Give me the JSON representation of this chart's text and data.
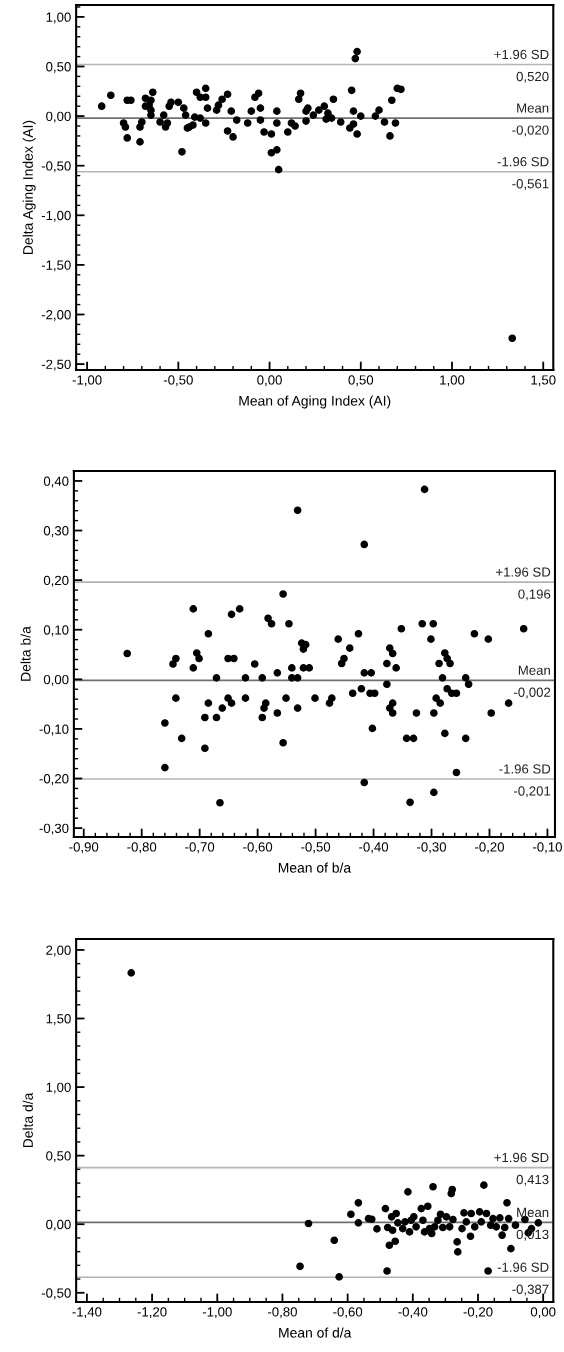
{
  "chart_data": [
    {
      "type": "scatter",
      "xlabel": "Mean of Aging Index (AI)",
      "ylabel": "Delta Aging Index (AI)",
      "marker": "circle",
      "grid": false,
      "xlim": [
        -1.06,
        1.555
      ],
      "ylim": [
        -2.56,
        1.12
      ],
      "xticks": [
        {
          "value": -1,
          "label": "-1,00"
        },
        {
          "value": -0.5,
          "label": "-0,50"
        },
        {
          "value": 0,
          "label": "0,00"
        },
        {
          "value": 0.5,
          "label": "0,50"
        },
        {
          "value": 1,
          "label": "1,00"
        },
        {
          "value": 1.5,
          "label": "1,50"
        }
      ],
      "yticks": [
        {
          "value": -2.5,
          "label": "-2,50"
        },
        {
          "value": -2,
          "label": "-2,00"
        },
        {
          "value": -1.5,
          "label": "-1,50"
        },
        {
          "value": -1,
          "label": "-1,00"
        },
        {
          "value": -0.5,
          "label": "-0,50"
        },
        {
          "value": 0,
          "label": "0,00"
        },
        {
          "value": 0.5,
          "label": "0,50"
        },
        {
          "value": 1,
          "label": "1,00"
        }
      ],
      "ref_lines": [
        {
          "axis": "y",
          "value": 0.52,
          "label": "+1.96 SD\n0,520",
          "color": "#b4b4b4"
        },
        {
          "axis": "y",
          "value": -0.02,
          "label": "Mean\n-0,020",
          "color": "#707070"
        },
        {
          "axis": "y",
          "value": -0.561,
          "label": "-1.96 SD\n-0,561",
          "color": "#b4b4b4"
        }
      ],
      "series": [
        {
          "color": "#000000",
          "x": [
            -0.92,
            -0.87,
            -0.8,
            -0.79,
            -0.78,
            -0.78,
            -0.76,
            -0.71,
            -0.71,
            -0.7,
            -0.68,
            -0.68,
            -0.66,
            -0.65,
            -0.65,
            -0.65,
            -0.64,
            -0.6,
            -0.58,
            -0.57,
            -0.56,
            -0.55,
            -0.54,
            -0.5,
            -0.48,
            -0.47,
            -0.46,
            -0.45,
            -0.44,
            -0.42,
            -0.41,
            -0.4,
            -0.38,
            -0.38,
            -0.35,
            -0.35,
            -0.34,
            -0.35,
            -0.29,
            -0.28,
            -0.26,
            -0.23,
            -0.23,
            -0.21,
            -0.2,
            -0.18,
            -0.12,
            -0.1,
            -0.08,
            -0.06,
            -0.05,
            -0.05,
            -0.03,
            0.01,
            0.01,
            0.04,
            0.04,
            0.05,
            0.04,
            0.1,
            0.12,
            0.14,
            0.16,
            0.17,
            0.2,
            0.2,
            0.21,
            0.24,
            0.27,
            0.3,
            0.31,
            0.32,
            0.34,
            0.35,
            0.39,
            0.44,
            0.45,
            0.46,
            0.46,
            0.47,
            0.48,
            0.48,
            0.5,
            0.58,
            0.6,
            0.63,
            0.66,
            0.67,
            0.69,
            0.7,
            0.72,
            1.33
          ],
          "values": [
            0.1,
            0.21,
            -0.07,
            -0.11,
            -0.22,
            0.16,
            0.16,
            -0.11,
            -0.26,
            -0.06,
            0.18,
            0.1,
            0.11,
            0.16,
            0.06,
            0.01,
            0.24,
            -0.06,
            0.01,
            -0.11,
            -0.07,
            0.1,
            0.14,
            0.14,
            -0.36,
            0.08,
            0.01,
            -0.12,
            -0.11,
            -0.09,
            -0.01,
            0.24,
            0.19,
            -0.02,
            0.19,
            0.28,
            0.08,
            -0.07,
            0.06,
            0.11,
            0.17,
            0.22,
            -0.15,
            0.05,
            -0.21,
            -0.04,
            -0.07,
            0.05,
            0.19,
            0.23,
            0.08,
            -0.04,
            -0.16,
            -0.18,
            -0.37,
            -0.34,
            0.05,
            -0.54,
            -0.07,
            -0.16,
            -0.07,
            -0.1,
            0.17,
            0.23,
            -0.05,
            0.05,
            0.08,
            0.01,
            0.06,
            0.1,
            -0.03,
            0.03,
            -0.02,
            0.17,
            -0.06,
            -0.12,
            0.26,
            -0.08,
            0.05,
            0.58,
            0.65,
            -0.18,
            0.0,
            0.0,
            0.06,
            -0.06,
            -0.2,
            0.16,
            -0.07,
            0.28,
            0.27,
            -2.24
          ]
        }
      ]
    },
    {
      "type": "scatter",
      "xlabel": "Mean of b/a",
      "ylabel": "Delta b/a",
      "marker": "circle",
      "grid": false,
      "xlim": [
        -0.917,
        -0.087
      ],
      "ylim": [
        -0.318,
        0.42
      ],
      "xticks": [
        {
          "value": -0.9,
          "label": "-0,90"
        },
        {
          "value": -0.8,
          "label": "-0,80"
        },
        {
          "value": -0.7,
          "label": "-0,70"
        },
        {
          "value": -0.6,
          "label": "-0,60"
        },
        {
          "value": -0.5,
          "label": "-0,50"
        },
        {
          "value": -0.4,
          "label": "-0,40"
        },
        {
          "value": -0.3,
          "label": "-0,30"
        },
        {
          "value": -0.2,
          "label": "-0,20"
        },
        {
          "value": -0.1,
          "label": "-0,10"
        }
      ],
      "yticks": [
        {
          "value": -0.3,
          "label": "-0,30"
        },
        {
          "value": -0.2,
          "label": "-0,20"
        },
        {
          "value": -0.1,
          "label": "-0,10"
        },
        {
          "value": 0,
          "label": "0,00"
        },
        {
          "value": 0.1,
          "label": "0,10"
        },
        {
          "value": 0.2,
          "label": "0,20"
        },
        {
          "value": 0.3,
          "label": "0,30"
        },
        {
          "value": 0.4,
          "label": "0,40"
        }
      ],
      "ref_lines": [
        {
          "axis": "y",
          "value": 0.196,
          "label": "+1.96 SD\n0,196",
          "color": "#b4b4b4"
        },
        {
          "axis": "y",
          "value": -0.002,
          "label": "Mean\n-0,002",
          "color": "#707070"
        },
        {
          "axis": "y",
          "value": -0.201,
          "label": "-1.96 SD\n-0,201",
          "color": "#b4b4b4"
        }
      ],
      "series": [
        {
          "color": "#000000",
          "x": [
            -0.711,
            -0.685,
            -0.645,
            -0.631,
            -0.582,
            -0.576,
            -0.556,
            -0.546,
            -0.531,
            -0.461,
            -0.426,
            -0.416,
            -0.352,
            -0.316,
            -0.312,
            -0.301,
            -0.297,
            -0.226,
            -0.202,
            -0.141,
            -0.825,
            -0.76,
            -0.76,
            -0.746,
            -0.741,
            -0.741,
            -0.731,
            -0.711,
            -0.705,
            -0.701,
            -0.691,
            -0.691,
            -0.685,
            -0.671,
            -0.671,
            -0.665,
            -0.661,
            -0.651,
            -0.651,
            -0.645,
            -0.641,
            -0.621,
            -0.621,
            -0.605,
            -0.592,
            -0.592,
            -0.589,
            -0.586,
            -0.566,
            -0.566,
            -0.556,
            -0.551,
            -0.541,
            -0.541,
            -0.531,
            -0.531,
            -0.524,
            -0.517,
            -0.521,
            -0.521,
            -0.511,
            -0.501,
            -0.476,
            -0.472,
            -0.455,
            -0.451,
            -0.441,
            -0.436,
            -0.421,
            -0.416,
            -0.416,
            -0.404,
            -0.406,
            -0.402,
            -0.398,
            -0.377,
            -0.377,
            -0.372,
            -0.367,
            -0.372,
            -0.367,
            -0.367,
            -0.361,
            -0.343,
            -0.331,
            -0.326,
            -0.337,
            -0.296,
            -0.296,
            -0.292,
            -0.285,
            -0.287,
            -0.281,
            -0.277,
            -0.277,
            -0.273,
            -0.268,
            -0.273,
            -0.265,
            -0.257,
            -0.257,
            -0.241,
            -0.241,
            -0.236,
            -0.197,
            -0.167
          ],
          "values": [
            0.142,
            0.092,
            0.131,
            0.142,
            0.123,
            0.112,
            0.172,
            0.112,
            0.341,
            0.081,
            0.092,
            0.272,
            0.102,
            0.112,
            0.383,
            0.081,
            0.112,
            0.092,
            0.081,
            0.102,
            0.052,
            -0.088,
            -0.178,
            0.031,
            0.042,
            -0.038,
            -0.119,
            0.023,
            0.053,
            0.042,
            -0.077,
            -0.139,
            -0.048,
            0.003,
            -0.077,
            -0.249,
            -0.058,
            0.042,
            -0.038,
            -0.048,
            0.042,
            0.003,
            -0.038,
            0.031,
            0.003,
            -0.077,
            -0.058,
            -0.048,
            0.013,
            -0.068,
            -0.128,
            -0.038,
            0.023,
            0.003,
            0.003,
            -0.058,
            0.073,
            0.07,
            0.061,
            0.023,
            0.023,
            -0.038,
            -0.048,
            -0.038,
            0.032,
            0.042,
            0.063,
            -0.028,
            -0.019,
            0.013,
            -0.208,
            0.013,
            -0.028,
            -0.099,
            -0.028,
            0.032,
            -0.01,
            0.063,
            0.052,
            -0.058,
            -0.048,
            -0.068,
            0.023,
            -0.119,
            -0.119,
            -0.068,
            -0.248,
            -0.228,
            -0.068,
            -0.038,
            -0.048,
            0.032,
            0.003,
            -0.109,
            0.053,
            0.042,
            0.032,
            -0.019,
            -0.028,
            -0.028,
            -0.188,
            0.003,
            -0.119,
            -0.01,
            -0.068,
            -0.048
          ]
        }
      ]
    },
    {
      "type": "scatter",
      "xlabel": "Mean of d/a",
      "ylabel": "Delta d/a",
      "marker": "circle",
      "grid": false,
      "xlim": [
        -1.433,
        0.031
      ],
      "ylim": [
        -0.567,
        2.08
      ],
      "xticks": [
        {
          "value": -1.4,
          "label": "-1,40"
        },
        {
          "value": -1.2,
          "label": "-1,20"
        },
        {
          "value": -1,
          "label": "-1,00"
        },
        {
          "value": -0.8,
          "label": "-0,80"
        },
        {
          "value": -0.6,
          "label": "-0,60"
        },
        {
          "value": -0.4,
          "label": "-0,40"
        },
        {
          "value": -0.2,
          "label": "-0,20"
        },
        {
          "value": 0,
          "label": "0,00"
        }
      ],
      "yticks": [
        {
          "value": -0.5,
          "label": "-0,50"
        },
        {
          "value": 0,
          "label": "0,00"
        },
        {
          "value": 0.5,
          "label": "0,50"
        },
        {
          "value": 1,
          "label": "1,00"
        },
        {
          "value": 1.5,
          "label": "1,50"
        },
        {
          "value": 2,
          "label": "2,00"
        }
      ],
      "ref_lines": [
        {
          "axis": "y",
          "value": 0.413,
          "label": "+1.96 SD\n0,413",
          "color": "#b4b4b4"
        },
        {
          "axis": "y",
          "value": 0.013,
          "label": "Mean\n0,013",
          "color": "#707070"
        },
        {
          "axis": "y",
          "value": -0.387,
          "label": "-1.96 SD\n-0,387",
          "color": "#b4b4b4"
        }
      ],
      "series": [
        {
          "color": "#000000",
          "x": [
            -1.264,
            -0.746,
            -0.72,
            -0.641,
            -0.626,
            -0.59,
            -0.567,
            -0.567,
            -0.536,
            -0.526,
            -0.51,
            -0.484,
            -0.479,
            -0.477,
            -0.472,
            -0.465,
            -0.462,
            -0.454,
            -0.451,
            -0.446,
            -0.431,
            -0.424,
            -0.415,
            -0.41,
            -0.405,
            -0.397,
            -0.39,
            -0.374,
            -0.369,
            -0.364,
            -0.354,
            -0.349,
            -0.342,
            -0.338,
            -0.333,
            -0.323,
            -0.315,
            -0.308,
            -0.297,
            -0.287,
            -0.282,
            -0.279,
            -0.277,
            -0.264,
            -0.262,
            -0.249,
            -0.243,
            -0.236,
            -0.223,
            -0.221,
            -0.21,
            -0.195,
            -0.19,
            -0.182,
            -0.174,
            -0.169,
            -0.161,
            -0.154,
            -0.144,
            -0.133,
            -0.126,
            -0.118,
            -0.111,
            -0.106,
            -0.099,
            -0.085,
            -0.056,
            -0.046,
            -0.036,
            -0.015
          ],
          "values": [
            1.833,
            -0.307,
            0.005,
            -0.117,
            -0.384,
            0.073,
            0.156,
            0.01,
            0.041,
            0.036,
            -0.034,
            0.114,
            -0.341,
            -0.024,
            -0.153,
            0.054,
            -0.044,
            -0.124,
            0.078,
            0.01,
            -0.032,
            0.017,
            0.236,
            -0.056,
            0.029,
            0.054,
            -0.019,
            0.114,
            0.029,
            -0.056,
            0.131,
            -0.032,
            -0.068,
            0.273,
            -0.019,
            0.029,
            0.073,
            -0.024,
            0.054,
            -0.019,
            0.224,
            0.253,
            0.034,
            -0.129,
            -0.202,
            -0.032,
            0.083,
            0.017,
            -0.088,
            0.078,
            -0.019,
            0.09,
            0.017,
            0.285,
            0.078,
            -0.341,
            -0.007,
            0.041,
            -0.019,
            0.046,
            -0.08,
            -0.024,
            0.156,
            0.041,
            -0.178,
            -0.007,
            0.034,
            -0.063,
            -0.032,
            0.01
          ]
        }
      ]
    }
  ]
}
